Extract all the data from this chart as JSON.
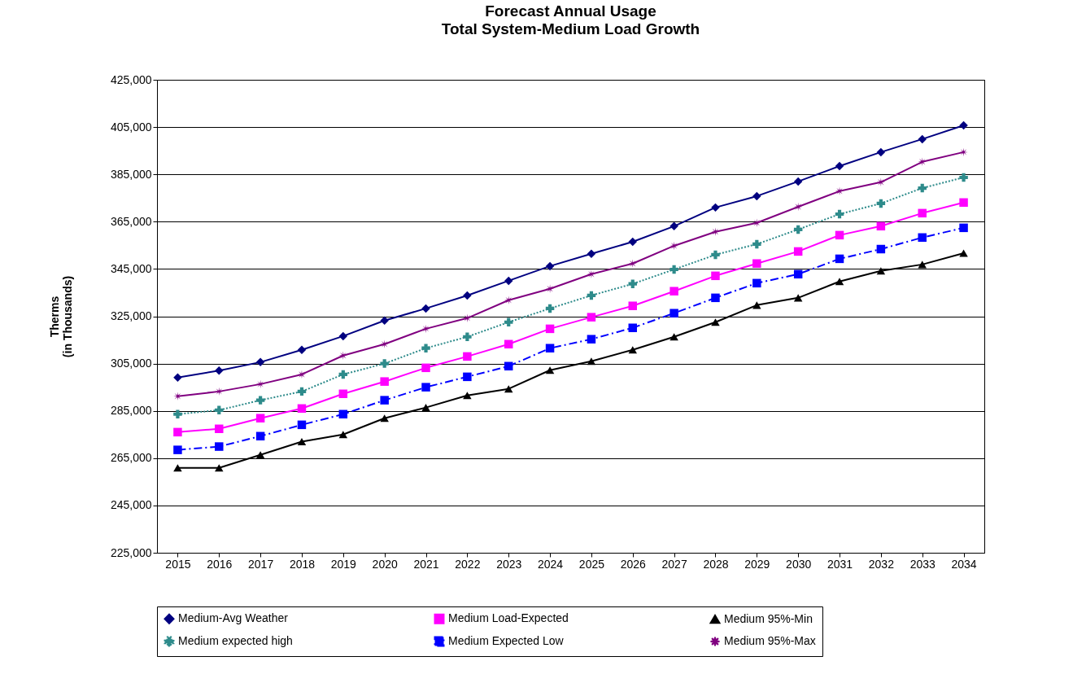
{
  "chart_data": {
    "type": "line",
    "title": "Forecast Annual Usage",
    "subtitle": "Total System-Medium Load Growth",
    "ylabel": "Therms\n(in Thousands)",
    "categories": [
      "2015",
      "2016",
      "2017",
      "2018",
      "2019",
      "2020",
      "2021",
      "2022",
      "2023",
      "2024",
      "2025",
      "2026",
      "2027",
      "2028",
      "2029",
      "2030",
      "2031",
      "2032",
      "2033",
      "2034"
    ],
    "ylim": [
      225000,
      425000
    ],
    "yticks": [
      {
        "value": 225000,
        "label": "225,000"
      },
      {
        "value": 245000,
        "label": "245,000"
      },
      {
        "value": 265000,
        "label": "265,000"
      },
      {
        "value": 285000,
        "label": "285,000"
      },
      {
        "value": 305000,
        "label": "305,000"
      },
      {
        "value": 325000,
        "label": "325,000"
      },
      {
        "value": 345000,
        "label": "345,000"
      },
      {
        "value": 365000,
        "label": "365,000"
      },
      {
        "value": 385000,
        "label": "385,000"
      },
      {
        "value": 405000,
        "label": "405,000"
      },
      {
        "value": 425000,
        "label": "425,000"
      }
    ],
    "grid": "y",
    "legend": "bottom",
    "series": [
      {
        "name": "Medium-Avg Weather",
        "color": "#000080",
        "marker": "diamond",
        "line_style": "solid",
        "values": [
          299100,
          302000,
          305600,
          310800,
          316600,
          323200,
          328300,
          333800,
          340000,
          346200,
          351400,
          356500,
          363100,
          371000,
          375800,
          382000,
          388500,
          394400,
          399900,
          405700
        ]
      },
      {
        "name": "Medium Load-Expected",
        "color": "#ff00ff",
        "marker": "square",
        "line_style": "solid",
        "values": [
          276000,
          277400,
          281900,
          286000,
          292200,
          297400,
          303200,
          308000,
          313200,
          319700,
          324600,
          329400,
          335600,
          342100,
          347300,
          352400,
          359300,
          363100,
          368600,
          373100
        ]
      },
      {
        "name": "Medium 95%-Min",
        "color": "#000000",
        "marker": "triangle",
        "line_style": "solid",
        "values": [
          260900,
          260900,
          266400,
          272000,
          275000,
          281900,
          286400,
          291500,
          294300,
          302200,
          306000,
          310800,
          316300,
          322500,
          329700,
          332800,
          339700,
          344200,
          346900,
          351700
        ]
      },
      {
        "name": "Medium expected high",
        "color": "#2e8b8b",
        "marker": "cross",
        "line_style": "dotted",
        "values": [
          283600,
          285300,
          289500,
          293200,
          300400,
          305000,
          311500,
          316300,
          322500,
          328300,
          333800,
          338700,
          344800,
          351000,
          355500,
          361700,
          368200,
          372700,
          379200,
          383700
        ]
      },
      {
        "name": "Medium Expected Low",
        "color": "#0000ff",
        "marker": "square",
        "line_style": "dashed",
        "values": [
          268500,
          269900,
          274300,
          279100,
          283600,
          289500,
          295000,
          299400,
          303900,
          311500,
          315300,
          320100,
          326300,
          332800,
          339000,
          342800,
          349300,
          353400,
          358300,
          362400
        ]
      },
      {
        "name": "Medium 95%-Max",
        "color": "#800080",
        "marker": "star",
        "line_style": "solid",
        "values": [
          291200,
          293200,
          296300,
          300400,
          308400,
          313200,
          319700,
          324200,
          331800,
          336600,
          342800,
          347300,
          354800,
          360700,
          364500,
          371300,
          377900,
          381700,
          390300,
          394400
        ]
      }
    ]
  }
}
